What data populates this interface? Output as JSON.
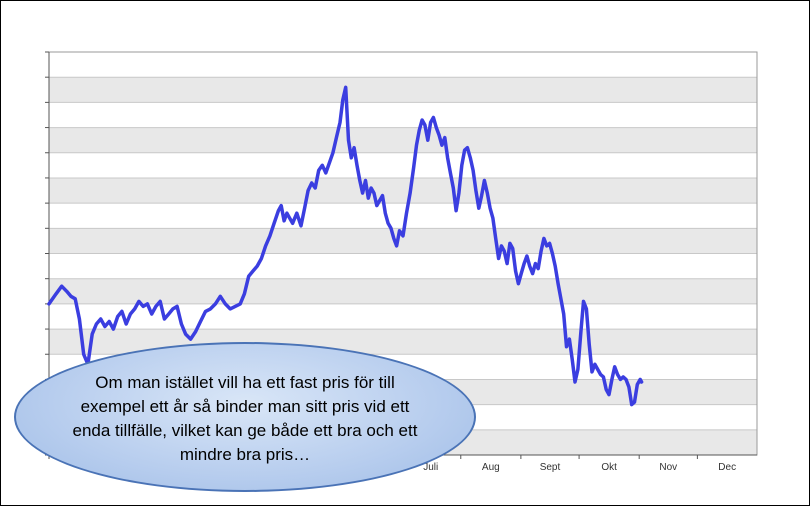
{
  "chart_data": {
    "type": "line",
    "title": "",
    "xlabel": "",
    "ylabel": "",
    "y_tick_labels_visible": false,
    "grid": "horizontal-bands",
    "colors": {
      "line": "#3b3ee0",
      "band_dark": "#e8e8e8",
      "band_light": "#ffffff",
      "grid_line": "#c8c8c8"
    },
    "months_visible": [
      "Juli",
      "Aug",
      "Sept",
      "Okt",
      "Nov",
      "Dec"
    ],
    "month_start_x": [
      0.0,
      0.0849,
      0.1625,
      0.2474,
      0.3296,
      0.4145,
      0.4967,
      0.5816,
      0.6665,
      0.7487,
      0.8336,
      0.9158
    ],
    "ylim": [
      0,
      16
    ],
    "series": [
      {
        "values": [
          [
            0.0,
            6.0
          ],
          [
            0.01,
            6.4
          ],
          [
            0.018,
            6.7
          ],
          [
            0.025,
            6.5
          ],
          [
            0.031,
            6.3
          ],
          [
            0.037,
            6.2
          ],
          [
            0.043,
            5.4
          ],
          [
            0.049,
            4.0
          ],
          [
            0.055,
            3.6
          ],
          [
            0.061,
            4.8
          ],
          [
            0.067,
            5.2
          ],
          [
            0.073,
            5.4
          ],
          [
            0.079,
            5.1
          ],
          [
            0.085,
            5.3
          ],
          [
            0.091,
            5.0
          ],
          [
            0.097,
            5.5
          ],
          [
            0.103,
            5.7
          ],
          [
            0.109,
            5.2
          ],
          [
            0.115,
            5.6
          ],
          [
            0.121,
            5.8
          ],
          [
            0.127,
            6.1
          ],
          [
            0.133,
            5.9
          ],
          [
            0.139,
            6.0
          ],
          [
            0.145,
            5.6
          ],
          [
            0.151,
            5.9
          ],
          [
            0.157,
            6.1
          ],
          [
            0.163,
            5.4
          ],
          [
            0.169,
            5.6
          ],
          [
            0.175,
            5.8
          ],
          [
            0.181,
            5.9
          ],
          [
            0.187,
            5.2
          ],
          [
            0.193,
            4.8
          ],
          [
            0.2,
            4.6
          ],
          [
            0.207,
            4.9
          ],
          [
            0.214,
            5.3
          ],
          [
            0.221,
            5.7
          ],
          [
            0.228,
            5.8
          ],
          [
            0.235,
            6.0
          ],
          [
            0.242,
            6.3
          ],
          [
            0.249,
            6.0
          ],
          [
            0.256,
            5.8
          ],
          [
            0.263,
            5.9
          ],
          [
            0.27,
            6.0
          ],
          [
            0.276,
            6.4
          ],
          [
            0.282,
            7.1
          ],
          [
            0.288,
            7.3
          ],
          [
            0.294,
            7.5
          ],
          [
            0.3,
            7.8
          ],
          [
            0.306,
            8.3
          ],
          [
            0.312,
            8.7
          ],
          [
            0.318,
            9.2
          ],
          [
            0.324,
            9.7
          ],
          [
            0.328,
            9.9
          ],
          [
            0.332,
            9.3
          ],
          [
            0.336,
            9.6
          ],
          [
            0.34,
            9.4
          ],
          [
            0.344,
            9.2
          ],
          [
            0.35,
            9.6
          ],
          [
            0.356,
            9.1
          ],
          [
            0.361,
            9.8
          ],
          [
            0.366,
            10.5
          ],
          [
            0.371,
            10.8
          ],
          [
            0.376,
            10.6
          ],
          [
            0.381,
            11.3
          ],
          [
            0.386,
            11.5
          ],
          [
            0.391,
            11.2
          ],
          [
            0.396,
            11.6
          ],
          [
            0.401,
            12.0
          ],
          [
            0.406,
            12.6
          ],
          [
            0.411,
            13.2
          ],
          [
            0.415,
            14.1
          ],
          [
            0.419,
            14.6
          ],
          [
            0.423,
            12.5
          ],
          [
            0.427,
            11.8
          ],
          [
            0.431,
            12.2
          ],
          [
            0.435,
            11.5
          ],
          [
            0.439,
            10.9
          ],
          [
            0.443,
            10.4
          ],
          [
            0.447,
            10.9
          ],
          [
            0.451,
            10.2
          ],
          [
            0.455,
            10.6
          ],
          [
            0.459,
            10.4
          ],
          [
            0.463,
            9.9
          ],
          [
            0.467,
            10.1
          ],
          [
            0.471,
            10.3
          ],
          [
            0.475,
            9.6
          ],
          [
            0.479,
            9.2
          ],
          [
            0.483,
            9.0
          ],
          [
            0.487,
            8.6
          ],
          [
            0.491,
            8.3
          ],
          [
            0.495,
            8.9
          ],
          [
            0.5,
            8.7
          ],
          [
            0.505,
            9.6
          ],
          [
            0.51,
            10.4
          ],
          [
            0.515,
            11.4
          ],
          [
            0.519,
            12.3
          ],
          [
            0.523,
            12.9
          ],
          [
            0.527,
            13.3
          ],
          [
            0.531,
            13.1
          ],
          [
            0.535,
            12.5
          ],
          [
            0.539,
            13.2
          ],
          [
            0.543,
            13.4
          ],
          [
            0.547,
            13.0
          ],
          [
            0.551,
            12.7
          ],
          [
            0.555,
            12.3
          ],
          [
            0.559,
            12.6
          ],
          [
            0.563,
            11.8
          ],
          [
            0.567,
            11.2
          ],
          [
            0.571,
            10.6
          ],
          [
            0.575,
            9.7
          ],
          [
            0.579,
            10.4
          ],
          [
            0.583,
            11.5
          ],
          [
            0.587,
            12.1
          ],
          [
            0.591,
            12.2
          ],
          [
            0.595,
            11.8
          ],
          [
            0.599,
            11.3
          ],
          [
            0.603,
            10.5
          ],
          [
            0.607,
            9.8
          ],
          [
            0.611,
            10.3
          ],
          [
            0.615,
            10.9
          ],
          [
            0.619,
            10.4
          ],
          [
            0.623,
            9.8
          ],
          [
            0.627,
            9.4
          ],
          [
            0.631,
            8.6
          ],
          [
            0.635,
            7.8
          ],
          [
            0.639,
            8.3
          ],
          [
            0.643,
            8.1
          ],
          [
            0.647,
            7.6
          ],
          [
            0.651,
            8.4
          ],
          [
            0.655,
            8.2
          ],
          [
            0.659,
            7.3
          ],
          [
            0.663,
            6.8
          ],
          [
            0.667,
            7.2
          ],
          [
            0.671,
            7.6
          ],
          [
            0.675,
            7.9
          ],
          [
            0.679,
            7.5
          ],
          [
            0.683,
            7.2
          ],
          [
            0.687,
            7.6
          ],
          [
            0.691,
            7.4
          ],
          [
            0.695,
            8.1
          ],
          [
            0.699,
            8.6
          ],
          [
            0.703,
            8.3
          ],
          [
            0.707,
            8.4
          ],
          [
            0.711,
            8.0
          ],
          [
            0.715,
            7.5
          ],
          [
            0.719,
            6.8
          ],
          [
            0.723,
            6.2
          ],
          [
            0.727,
            5.6
          ],
          [
            0.731,
            4.3
          ],
          [
            0.735,
            4.6
          ],
          [
            0.739,
            3.8
          ],
          [
            0.743,
            2.9
          ],
          [
            0.747,
            3.4
          ],
          [
            0.751,
            4.8
          ],
          [
            0.755,
            6.1
          ],
          [
            0.759,
            5.8
          ],
          [
            0.763,
            4.4
          ],
          [
            0.767,
            3.3
          ],
          [
            0.771,
            3.6
          ],
          [
            0.775,
            3.4
          ],
          [
            0.779,
            3.2
          ],
          [
            0.783,
            3.1
          ],
          [
            0.787,
            2.6
          ],
          [
            0.791,
            2.4
          ],
          [
            0.795,
            3.0
          ],
          [
            0.799,
            3.5
          ],
          [
            0.803,
            3.2
          ],
          [
            0.807,
            3.0
          ],
          [
            0.811,
            3.1
          ],
          [
            0.815,
            3.0
          ],
          [
            0.819,
            2.7
          ],
          [
            0.823,
            2.0
          ],
          [
            0.827,
            2.1
          ],
          [
            0.831,
            2.8
          ],
          [
            0.835,
            3.0
          ],
          [
            0.837,
            2.9
          ]
        ]
      }
    ]
  },
  "callout": {
    "text": "Om man istället vill ha ett fast pris för till exempel ett år så binder man sitt pris vid ett enda tillfälle, vilket kan ge både ett bra och ett mindre bra pris…"
  }
}
